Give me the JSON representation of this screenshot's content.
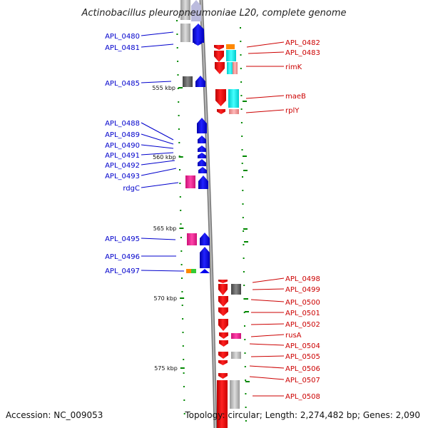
{
  "title": "Actinobacillus pleuropneumoniae L20, complete genome",
  "footer": {
    "accession": "Accession: NC_009053",
    "topology": "Topology: circular; Length: 2,274,482 bp; Genes: 2,090"
  },
  "colors": {
    "forward": "#0000ee",
    "reverse": "#ee0000",
    "forward_label": "#0000cc",
    "reverse_label": "#cc0000",
    "tick": "#008800",
    "backbone": "#888888"
  },
  "kbp_ticks": [
    "555 kbp",
    "560 kbp",
    "565 kbp",
    "570 kbp",
    "575 kbp"
  ],
  "left_labels": [
    "APL_0480",
    "APL_0481",
    "APL_0485",
    "APL_0488",
    "APL_0489",
    "APL_0490",
    "APL_0491",
    "APL_0492",
    "APL_0493",
    "rdgC",
    "APL_0495",
    "APL_0496",
    "APL_0497"
  ],
  "right_labels": [
    "APL_0482",
    "APL_0483",
    "rimK",
    "maeB",
    "rplY",
    "APL_0498",
    "APL_0499",
    "APL_0500",
    "APL_0501",
    "APL_0502",
    "rusA",
    "APL_0504",
    "APL_0505",
    "APL_0506",
    "APL_0507",
    "APL_0508"
  ]
}
